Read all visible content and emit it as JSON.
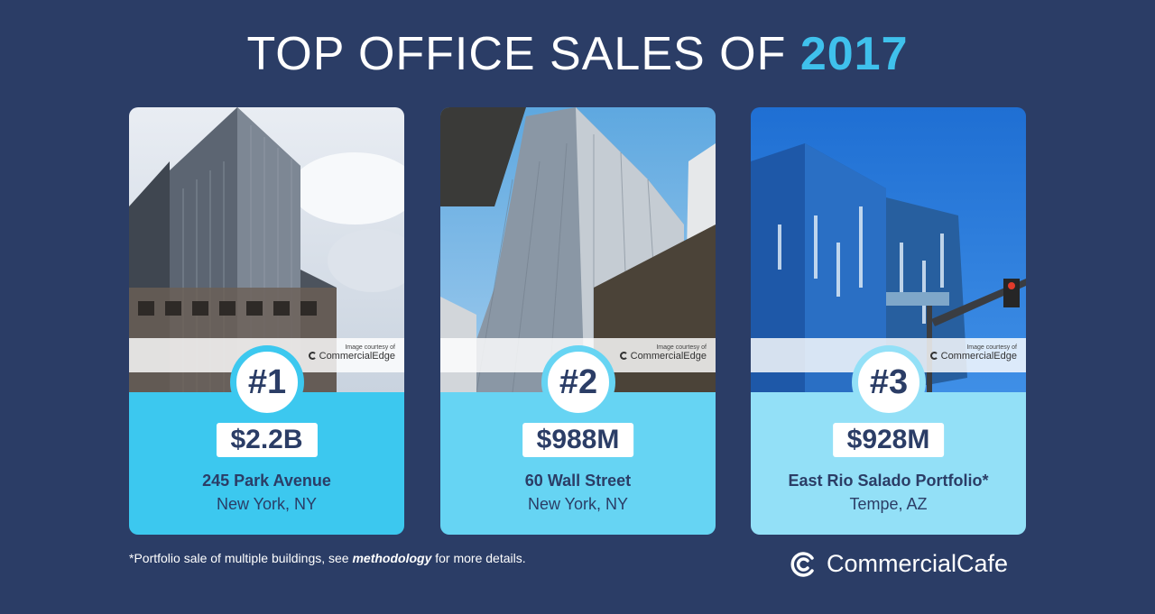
{
  "header": {
    "title_main": "TOP OFFICE SALES OF",
    "title_year": "2017"
  },
  "cards": [
    {
      "rank": "#1",
      "price": "$2.2B",
      "address": "245 Park Avenue",
      "city": "New York, NY",
      "credit_small": "Image courtesy of",
      "credit_brand": "CommercialEdge",
      "accent": "#3cc8ef"
    },
    {
      "rank": "#2",
      "price": "$988M",
      "address": "60 Wall Street",
      "city": "New York, NY",
      "credit_small": "Image courtesy of",
      "credit_brand": "CommercialEdge",
      "accent": "#66d4f3"
    },
    {
      "rank": "#3",
      "price": "$928M",
      "address": "East Rio Salado Portfolio*",
      "city": "Tempe, AZ",
      "credit_small": "Image courtesy of",
      "credit_brand": "CommercialEdge",
      "accent": "#93e0f7"
    }
  ],
  "footnote": {
    "before": "*Portfolio sale of multiple buildings, see ",
    "emphasis": "methodology",
    "after": " for more details."
  },
  "logo": {
    "text": "CommercialCafe",
    "icon": "commercialcafe-logo-icon"
  },
  "colors": {
    "background": "#2b3d66",
    "year_accent": "#3fc1ec"
  }
}
